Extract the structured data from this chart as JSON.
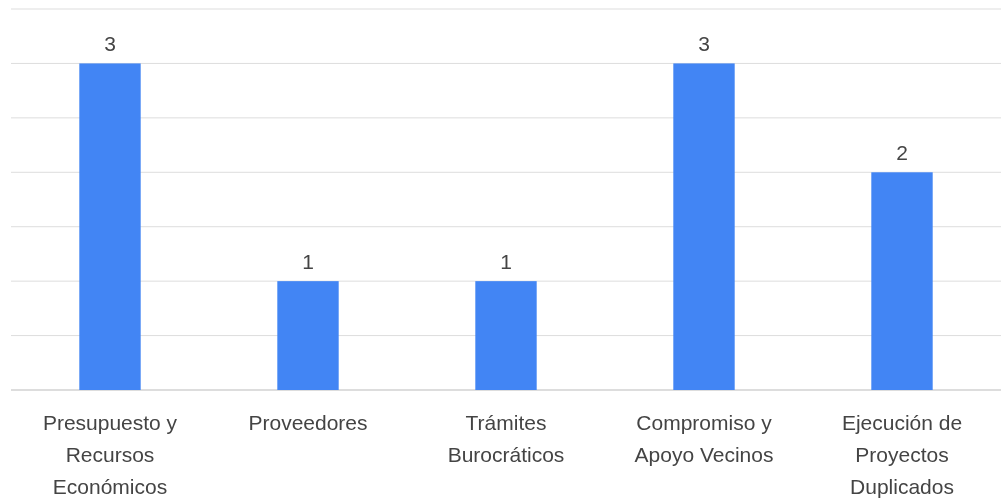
{
  "chart_data": {
    "type": "bar",
    "categories": [
      "Presupuesto y Recursos Económicos",
      "Proveedores",
      "Trámites Burocráticos",
      "Compromiso y Apoyo Vecinos",
      "Ejecución de Proyectos Duplicados"
    ],
    "values": [
      3,
      1,
      1,
      3,
      2
    ],
    "color": "#4285f4",
    "data_labels": true,
    "ylim": [
      0,
      3.5
    ],
    "yticks": [
      {
        "value": 0,
        "label": null
      },
      {
        "value": 0.5,
        "label": null
      },
      {
        "value": 1,
        "label": null
      },
      {
        "value": 1.5,
        "label": null
      },
      {
        "value": 2,
        "label": null
      },
      {
        "value": 2.5,
        "label": null
      },
      {
        "value": 3,
        "label": null
      },
      {
        "value": 3.5,
        "label": null
      }
    ],
    "grid": "y",
    "tick_labels": "x"
  }
}
